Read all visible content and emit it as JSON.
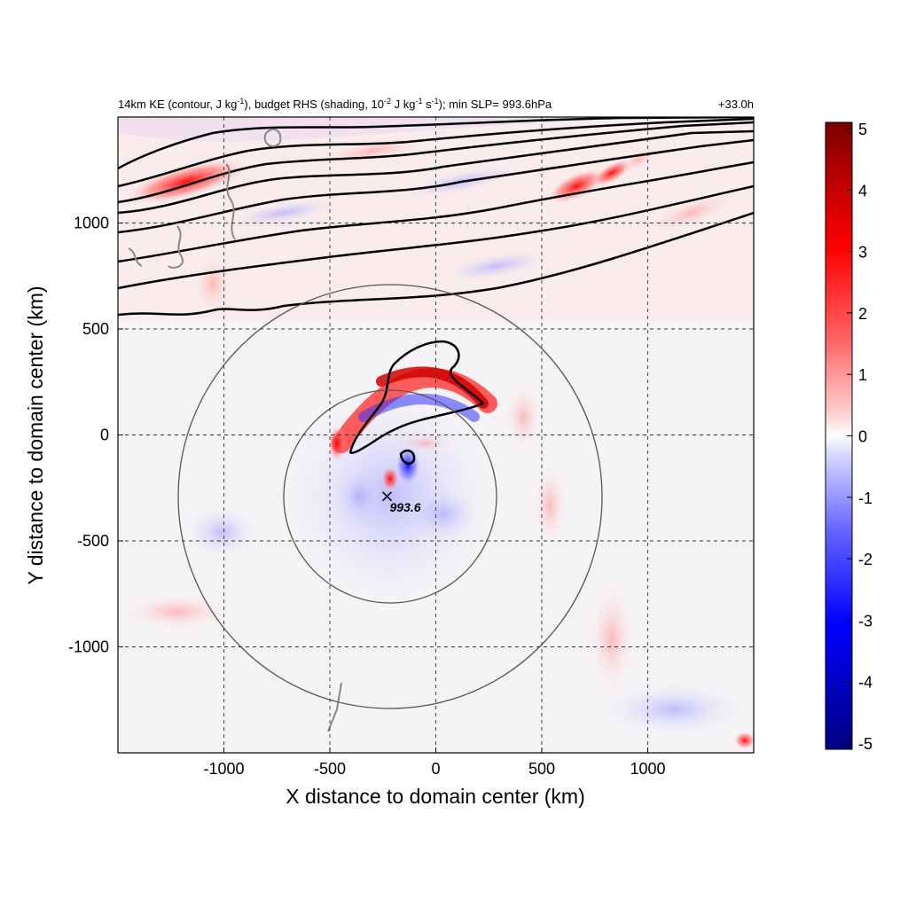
{
  "chart_data": {
    "type": "heatmap",
    "title": {
      "prefix": "14km KE (contour, J kg",
      "sup1": "-1",
      "mid1": "), budget RHS (shading, 10",
      "sup2": "-2",
      "mid2": " J kg",
      "sup3": "-1",
      "mid3": " s",
      "sup4": "-1",
      "suffix": "); min SLP= 993.6hPa"
    },
    "time_label": "+33.0h",
    "xlabel": "X distance to domain center (km)",
    "ylabel": "Y distance to domain center (km)",
    "xlim": [
      -1500,
      1500
    ],
    "ylim": [
      -1500,
      1500
    ],
    "x_ticks": [
      -1000,
      -500,
      0,
      500,
      1000
    ],
    "y_ticks": [
      1000,
      500,
      0,
      -500,
      -1000
    ],
    "grid": true,
    "colorbar": {
      "ticks": [
        5,
        4,
        3,
        2,
        1,
        0,
        -1,
        -2,
        -3,
        -4,
        -5
      ],
      "range": [
        -5,
        5
      ],
      "colors": {
        "max": "#7a0000",
        "high": "#ff0000",
        "mid_high": "#ff9999",
        "zero": "#ffffff",
        "mid_low": "#9999ff",
        "low": "#0000ff",
        "min": "#000080"
      }
    },
    "storm_center": {
      "x": -230,
      "y": -290,
      "min_slp_label": "993.6"
    },
    "radius_circles_km": [
      500,
      1000
    ],
    "features": [
      {
        "name": "positive-band-north-of-center",
        "x": 60,
        "y": 280,
        "value": 3.5
      },
      {
        "name": "negative-ring-core",
        "x": -120,
        "y": -80,
        "value": -2.5
      },
      {
        "name": "jet-streak-northeast",
        "x": 800,
        "y": 1200,
        "value": 4.5
      },
      {
        "name": "jet-streak-northwest",
        "x": -1250,
        "y": 1200,
        "value": 3.0
      }
    ]
  }
}
